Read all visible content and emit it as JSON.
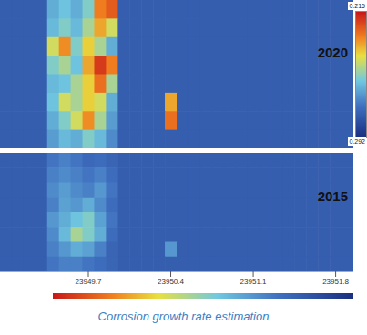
{
  "chart_data": [
    {
      "type": "heatmap",
      "title": "2020",
      "tick_labels": false,
      "xlim": [
        23948.95,
        23951.95
      ],
      "ylim": [
        0,
        8
      ],
      "x": [
        23949.0,
        23949.1,
        23949.2,
        23949.3,
        23949.4,
        23949.5,
        23949.6,
        23949.7,
        23949.8,
        23949.9,
        23950.0,
        23950.1,
        23950.2,
        23950.3,
        23950.4,
        23950.5,
        23950.6,
        23950.7,
        23950.8,
        23950.9,
        23951.0,
        23951.1,
        23951.2,
        23951.3,
        23951.4,
        23951.5,
        23951.6,
        23951.7,
        23951.8,
        23951.9
      ],
      "y": [
        7.5,
        6.5,
        5.5,
        4.5,
        3.5,
        2.5,
        1.5,
        0.5
      ],
      "cells": [
        [
          0.278,
          0.278,
          0.278,
          0.278,
          0.262,
          0.258,
          0.262,
          0.255,
          0.23,
          0.225,
          0.278,
          0.278,
          0.278,
          0.278,
          0.278,
          0.278,
          0.278,
          0.278,
          0.278,
          0.278,
          0.278,
          0.278,
          0.278,
          0.278,
          0.278,
          0.278,
          0.278,
          0.278,
          0.278,
          0.278
        ],
        [
          0.278,
          0.278,
          0.278,
          0.278,
          0.26,
          0.255,
          0.26,
          0.25,
          0.235,
          0.245,
          0.278,
          0.278,
          0.278,
          0.278,
          0.278,
          0.278,
          0.278,
          0.278,
          0.278,
          0.278,
          0.278,
          0.278,
          0.278,
          0.278,
          0.278,
          0.278,
          0.278,
          0.278,
          0.278,
          0.278
        ],
        [
          0.278,
          0.278,
          0.278,
          0.278,
          0.245,
          0.232,
          0.255,
          0.24,
          0.25,
          0.262,
          0.278,
          0.278,
          0.278,
          0.278,
          0.278,
          0.278,
          0.278,
          0.278,
          0.278,
          0.278,
          0.278,
          0.278,
          0.278,
          0.278,
          0.278,
          0.278,
          0.278,
          0.278,
          0.278,
          0.278
        ],
        [
          0.278,
          0.278,
          0.278,
          0.278,
          0.255,
          0.25,
          0.258,
          0.235,
          0.22,
          0.23,
          0.278,
          0.278,
          0.278,
          0.278,
          0.278,
          0.278,
          0.278,
          0.278,
          0.278,
          0.278,
          0.278,
          0.278,
          0.278,
          0.278,
          0.278,
          0.278,
          0.278,
          0.278,
          0.278,
          0.278
        ],
        [
          0.278,
          0.278,
          0.278,
          0.278,
          0.26,
          0.258,
          0.25,
          0.24,
          0.228,
          0.25,
          0.278,
          0.278,
          0.278,
          0.278,
          0.278,
          0.278,
          0.278,
          0.278,
          0.278,
          0.278,
          0.278,
          0.278,
          0.278,
          0.278,
          0.278,
          0.278,
          0.278,
          0.278,
          0.278,
          0.278
        ],
        [
          0.278,
          0.278,
          0.278,
          0.278,
          0.258,
          0.245,
          0.25,
          0.24,
          0.245,
          0.262,
          0.278,
          0.278,
          0.278,
          0.278,
          0.235,
          0.278,
          0.278,
          0.278,
          0.278,
          0.278,
          0.278,
          0.278,
          0.278,
          0.278,
          0.278,
          0.278,
          0.278,
          0.278,
          0.278,
          0.278
        ],
        [
          0.278,
          0.278,
          0.278,
          0.278,
          0.262,
          0.255,
          0.245,
          0.232,
          0.25,
          0.265,
          0.278,
          0.278,
          0.278,
          0.278,
          0.228,
          0.278,
          0.278,
          0.278,
          0.278,
          0.278,
          0.278,
          0.278,
          0.278,
          0.278,
          0.278,
          0.278,
          0.278,
          0.278,
          0.278,
          0.278
        ],
        [
          0.278,
          0.278,
          0.278,
          0.278,
          0.265,
          0.26,
          0.262,
          0.255,
          0.26,
          0.268,
          0.278,
          0.278,
          0.278,
          0.278,
          0.278,
          0.278,
          0.278,
          0.278,
          0.278,
          0.278,
          0.278,
          0.278,
          0.278,
          0.278,
          0.278,
          0.278,
          0.278,
          0.278,
          0.278,
          0.278
        ]
      ]
    },
    {
      "type": "heatmap",
      "title": "2015",
      "tick_labels": "x",
      "xlim": [
        23948.95,
        23951.95
      ],
      "xticks": [
        23949.7,
        23950.4,
        23951.1,
        23951.8
      ],
      "ylim": [
        0,
        8
      ],
      "x": [
        23949.0,
        23949.1,
        23949.2,
        23949.3,
        23949.4,
        23949.5,
        23949.6,
        23949.7,
        23949.8,
        23949.9,
        23950.0,
        23950.1,
        23950.2,
        23950.3,
        23950.4,
        23950.5,
        23950.6,
        23950.7,
        23950.8,
        23950.9,
        23951.0,
        23951.1,
        23951.2,
        23951.3,
        23951.4,
        23951.5,
        23951.6,
        23951.7,
        23951.8,
        23951.9
      ],
      "y": [
        7.5,
        6.5,
        5.5,
        4.5,
        3.5,
        2.5,
        1.5,
        0.5
      ],
      "cells": [
        [
          0.278,
          0.278,
          0.278,
          0.278,
          0.272,
          0.27,
          0.272,
          0.275,
          0.274,
          0.276,
          0.278,
          0.278,
          0.278,
          0.278,
          0.278,
          0.278,
          0.278,
          0.278,
          0.278,
          0.278,
          0.278,
          0.278,
          0.278,
          0.278,
          0.278,
          0.278,
          0.278,
          0.278,
          0.278,
          0.278
        ],
        [
          0.278,
          0.278,
          0.278,
          0.278,
          0.27,
          0.268,
          0.27,
          0.272,
          0.27,
          0.274,
          0.278,
          0.278,
          0.278,
          0.278,
          0.278,
          0.278,
          0.278,
          0.278,
          0.278,
          0.278,
          0.278,
          0.278,
          0.278,
          0.278,
          0.278,
          0.278,
          0.278,
          0.278,
          0.278,
          0.278
        ],
        [
          0.278,
          0.278,
          0.278,
          0.278,
          0.268,
          0.265,
          0.268,
          0.27,
          0.266,
          0.272,
          0.278,
          0.278,
          0.278,
          0.278,
          0.278,
          0.278,
          0.278,
          0.278,
          0.278,
          0.278,
          0.278,
          0.278,
          0.278,
          0.278,
          0.278,
          0.278,
          0.278,
          0.278,
          0.278,
          0.278
        ],
        [
          0.278,
          0.278,
          0.278,
          0.278,
          0.27,
          0.264,
          0.266,
          0.262,
          0.268,
          0.274,
          0.278,
          0.278,
          0.278,
          0.278,
          0.278,
          0.278,
          0.278,
          0.278,
          0.278,
          0.278,
          0.278,
          0.278,
          0.278,
          0.278,
          0.278,
          0.278,
          0.278,
          0.278,
          0.278,
          0.278
        ],
        [
          0.278,
          0.278,
          0.278,
          0.278,
          0.266,
          0.262,
          0.258,
          0.255,
          0.264,
          0.272,
          0.278,
          0.278,
          0.278,
          0.278,
          0.278,
          0.278,
          0.278,
          0.278,
          0.278,
          0.278,
          0.278,
          0.278,
          0.278,
          0.278,
          0.278,
          0.278,
          0.278,
          0.278,
          0.278,
          0.278
        ],
        [
          0.278,
          0.278,
          0.278,
          0.278,
          0.268,
          0.26,
          0.25,
          0.255,
          0.262,
          0.274,
          0.278,
          0.278,
          0.278,
          0.278,
          0.278,
          0.278,
          0.278,
          0.278,
          0.278,
          0.278,
          0.278,
          0.278,
          0.278,
          0.278,
          0.278,
          0.278,
          0.278,
          0.278,
          0.278,
          0.278
        ],
        [
          0.278,
          0.278,
          0.278,
          0.278,
          0.27,
          0.266,
          0.262,
          0.264,
          0.27,
          0.276,
          0.278,
          0.278,
          0.278,
          0.278,
          0.266,
          0.278,
          0.278,
          0.278,
          0.278,
          0.278,
          0.278,
          0.278,
          0.278,
          0.278,
          0.278,
          0.278,
          0.278,
          0.278,
          0.278,
          0.278
        ],
        [
          0.278,
          0.278,
          0.278,
          0.278,
          0.272,
          0.27,
          0.27,
          0.272,
          0.274,
          0.276,
          0.278,
          0.278,
          0.278,
          0.278,
          0.278,
          0.278,
          0.278,
          0.278,
          0.278,
          0.278,
          0.278,
          0.278,
          0.278,
          0.278,
          0.278,
          0.278,
          0.278,
          0.278,
          0.278,
          0.278
        ]
      ]
    }
  ],
  "colorbar": {
    "range": [
      0.292,
      0.215
    ],
    "ticks": [
      0.215,
      0.292
    ]
  },
  "caption": "Corrosion growth rate estimation"
}
